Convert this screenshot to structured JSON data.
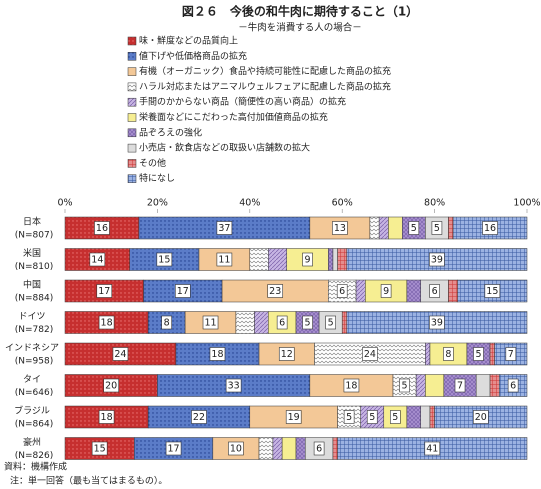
{
  "chart_data": {
    "type": "stacked-bar-horizontal",
    "title": "図２６　今後の和牛肉に期待すること（1）",
    "subtitle": "－牛肉を消費する人の場合－",
    "categories": [
      "日本",
      "米国",
      "中国",
      "ドイツ",
      "インドネシア",
      "タイ",
      "ブラジル",
      "豪州"
    ],
    "category_notes": [
      "(N=807)",
      "(N=810)",
      "(N=884)",
      "(N=782)",
      "(N=958)",
      "(N=646)",
      "(N=864)",
      "(N=826)"
    ],
    "xlim": [
      0,
      100
    ],
    "xticks": [
      {
        "value": 0,
        "label": "0%"
      },
      {
        "value": 20,
        "label": "20%"
      },
      {
        "value": 40,
        "label": "40%"
      },
      {
        "value": 60,
        "label": "60%"
      },
      {
        "value": 80,
        "label": "80%"
      },
      {
        "value": 100,
        "label": "100%"
      }
    ],
    "grid": false,
    "series": [
      {
        "name": "味・鮮度などの品質向上",
        "color": "#c62f2f",
        "values": [
          16,
          14,
          17,
          18,
          24,
          20,
          18,
          15
        ]
      },
      {
        "name": "値下げや低価格商品の拡充",
        "color": "#5b7cc8",
        "values": [
          37,
          15,
          17,
          8,
          18,
          33,
          22,
          17
        ]
      },
      {
        "name": "有機（オーガニック）食品や持続可能性に配慮した商品の拡充",
        "color": "#f3c897",
        "values": [
          13,
          11,
          23,
          11,
          12,
          18,
          19,
          10
        ]
      },
      {
        "name": "ハラル対応またはアニマルウェルフェアに配慮した商品の拡充",
        "color": "#ffffff",
        "values": [
          2,
          4,
          6,
          4,
          24,
          5,
          5,
          3
        ]
      },
      {
        "name": "手間のかからない商品（簡便性の高い商品）の拡充",
        "color": "#c7b5e3",
        "values": [
          2,
          4,
          2,
          3,
          1,
          2,
          5,
          2
        ]
      },
      {
        "name": "栄養面などにこだわった高付加価値商品の拡充",
        "color": "#f6ee92",
        "values": [
          3,
          9,
          9,
          6,
          8,
          4,
          5,
          3
        ]
      },
      {
        "name": "品ぞろえの強化",
        "color": "#a48ccc",
        "values": [
          5,
          1,
          3,
          5,
          5,
          7,
          3,
          2
        ]
      },
      {
        "name": "小売店・飲食店などの取扱い店舗数の拡大",
        "color": "#dcdcdc",
        "values": [
          5,
          1,
          6,
          5,
          0,
          3,
          2,
          6
        ]
      },
      {
        "name": "その他",
        "color": "#e58d8d",
        "values": [
          1,
          2,
          2,
          1,
          1,
          2,
          1,
          1
        ]
      },
      {
        "name": "特になし",
        "color": "#9bb2e2",
        "values": [
          16,
          39,
          15,
          39,
          7,
          6,
          20,
          41
        ]
      }
    ],
    "notes": [
      "資料：機構作成",
      "注：単一回答（最も当てはまるもの）。"
    ]
  }
}
